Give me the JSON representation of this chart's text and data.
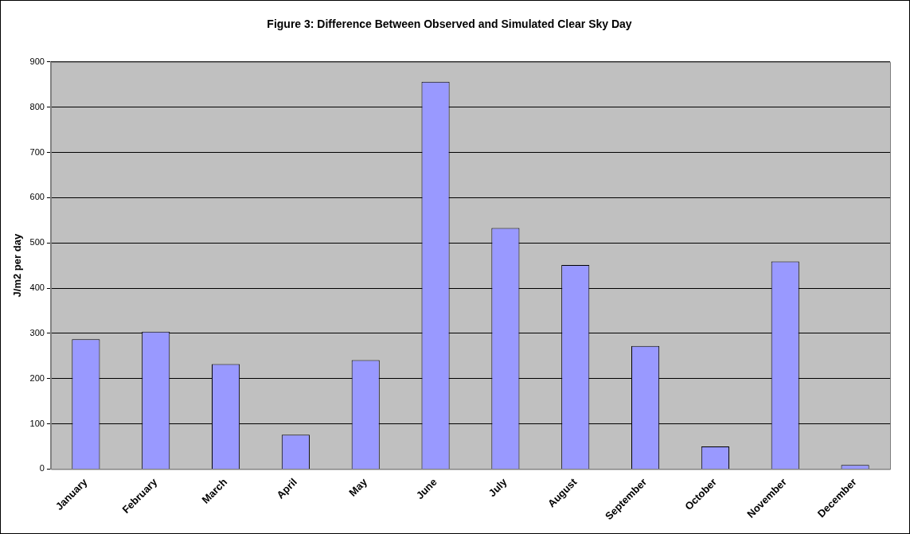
{
  "chart_data": {
    "type": "bar",
    "title": "Figure 3: Difference Between Observed and Simulated Clear Sky Day",
    "ylabel": "J/m2 per day",
    "categories": [
      "January",
      "February",
      "March",
      "April",
      "May",
      "June",
      "July",
      "August",
      "September",
      "October",
      "November",
      "December"
    ],
    "values": [
      287,
      304,
      232,
      76,
      241,
      856,
      533,
      451,
      272,
      50,
      459,
      9
    ],
    "color": "#9999ff",
    "ylim": [
      0,
      900
    ],
    "yticks": [
      0,
      100,
      200,
      300,
      400,
      500,
      600,
      700,
      800,
      900
    ],
    "grid": "y",
    "legend": false
  }
}
